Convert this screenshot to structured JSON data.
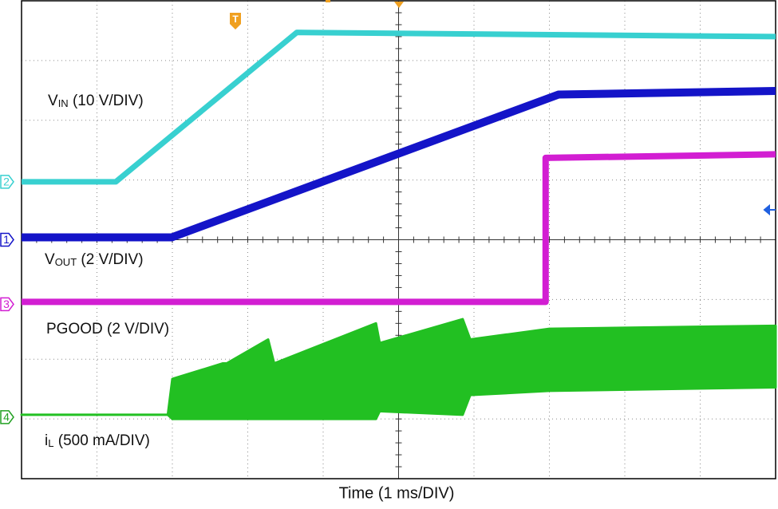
{
  "chart_data": {
    "type": "line",
    "x_label": "Time (1 ms/DIV)",
    "xlim": [
      0,
      10
    ],
    "ylim": [
      0,
      8
    ],
    "xticks": [
      0,
      1,
      2,
      3,
      4,
      5,
      6,
      7,
      8,
      9,
      10
    ],
    "yticks": [
      0,
      1,
      2,
      3,
      4,
      5,
      6,
      7,
      8
    ],
    "grid": true,
    "trigger_label": "T",
    "series": [
      {
        "color": "#38d0d0",
        "x": [
          0,
          1.25,
          3.65,
          10
        ],
        "values": [
          4.97,
          4.97,
          7.47,
          7.4
        ]
      },
      {
        "color": "#1414c8",
        "x": [
          0,
          1.99,
          7.12,
          10
        ],
        "values": [
          4.04,
          4.04,
          6.43,
          6.49
        ]
      },
      {
        "color": "#d21ed2",
        "x": [
          0,
          6.95,
          6.95,
          10
        ],
        "values": [
          2.96,
          2.96,
          5.37,
          5.43
        ]
      },
      {
        "color": "#22c022",
        "x": [
          0,
          1.94,
          2.0,
          2.67,
          2.72,
          3.27,
          3.35,
          4.7,
          4.75,
          5.85,
          5.95,
          7,
          10
        ],
        "values": [
          1.07,
          1.07,
          1.67,
          1.93,
          1.93,
          2.33,
          1.93,
          2.6,
          2.27,
          2.67,
          2.33,
          2.51,
          2.56
        ],
        "lows": [
          1.07,
          1.07,
          1.0,
          1.0,
          1.0,
          1.0,
          1.0,
          1.0,
          1.13,
          1.07,
          1.4,
          1.47,
          1.53
        ]
      }
    ],
    "channels": [
      {
        "label": "1",
        "color": "#1414c8",
        "level": 4.0
      },
      {
        "label": "2",
        "color": "#38d0d0",
        "level": 4.97
      },
      {
        "label": "3",
        "color": "#d21ed2",
        "level": 2.92
      },
      {
        "label": "4",
        "color": "#22a022",
        "level": 1.03
      }
    ],
    "annotations": [
      {
        "main": "V",
        "sub": "IN",
        "rest": " (10 V/DIV)"
      },
      {
        "main": "V",
        "sub": "OUT",
        "rest": " (2 V/DIV)"
      },
      {
        "main": "PGOOD (2 V/DIV)"
      },
      {
        "main": "i",
        "sub": "L",
        "rest": " (500 mA/DIV)"
      }
    ]
  }
}
